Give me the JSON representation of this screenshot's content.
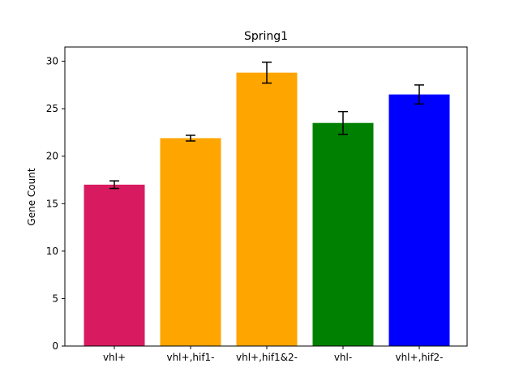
{
  "chart_data": {
    "type": "bar",
    "title": "Spring1",
    "xlabel": "",
    "ylabel": "Gene Count",
    "ylim": [
      0,
      31.5
    ],
    "yticks": [
      0,
      5,
      10,
      15,
      20,
      25,
      30
    ],
    "grid": false,
    "categories": [
      "vhl+",
      "vhl+,hif1-",
      "vhl+,hif1&2-",
      "vhl-",
      "vhl+,hif2-"
    ],
    "values": [
      17.0,
      21.9,
      28.8,
      23.5,
      26.5
    ],
    "errors": [
      0.4,
      0.3,
      1.1,
      1.2,
      1.0
    ],
    "colors": [
      "#d81b60",
      "#ffa500",
      "#ffa500",
      "#008000",
      "#0000ff"
    ],
    "error_color": "#000000"
  }
}
